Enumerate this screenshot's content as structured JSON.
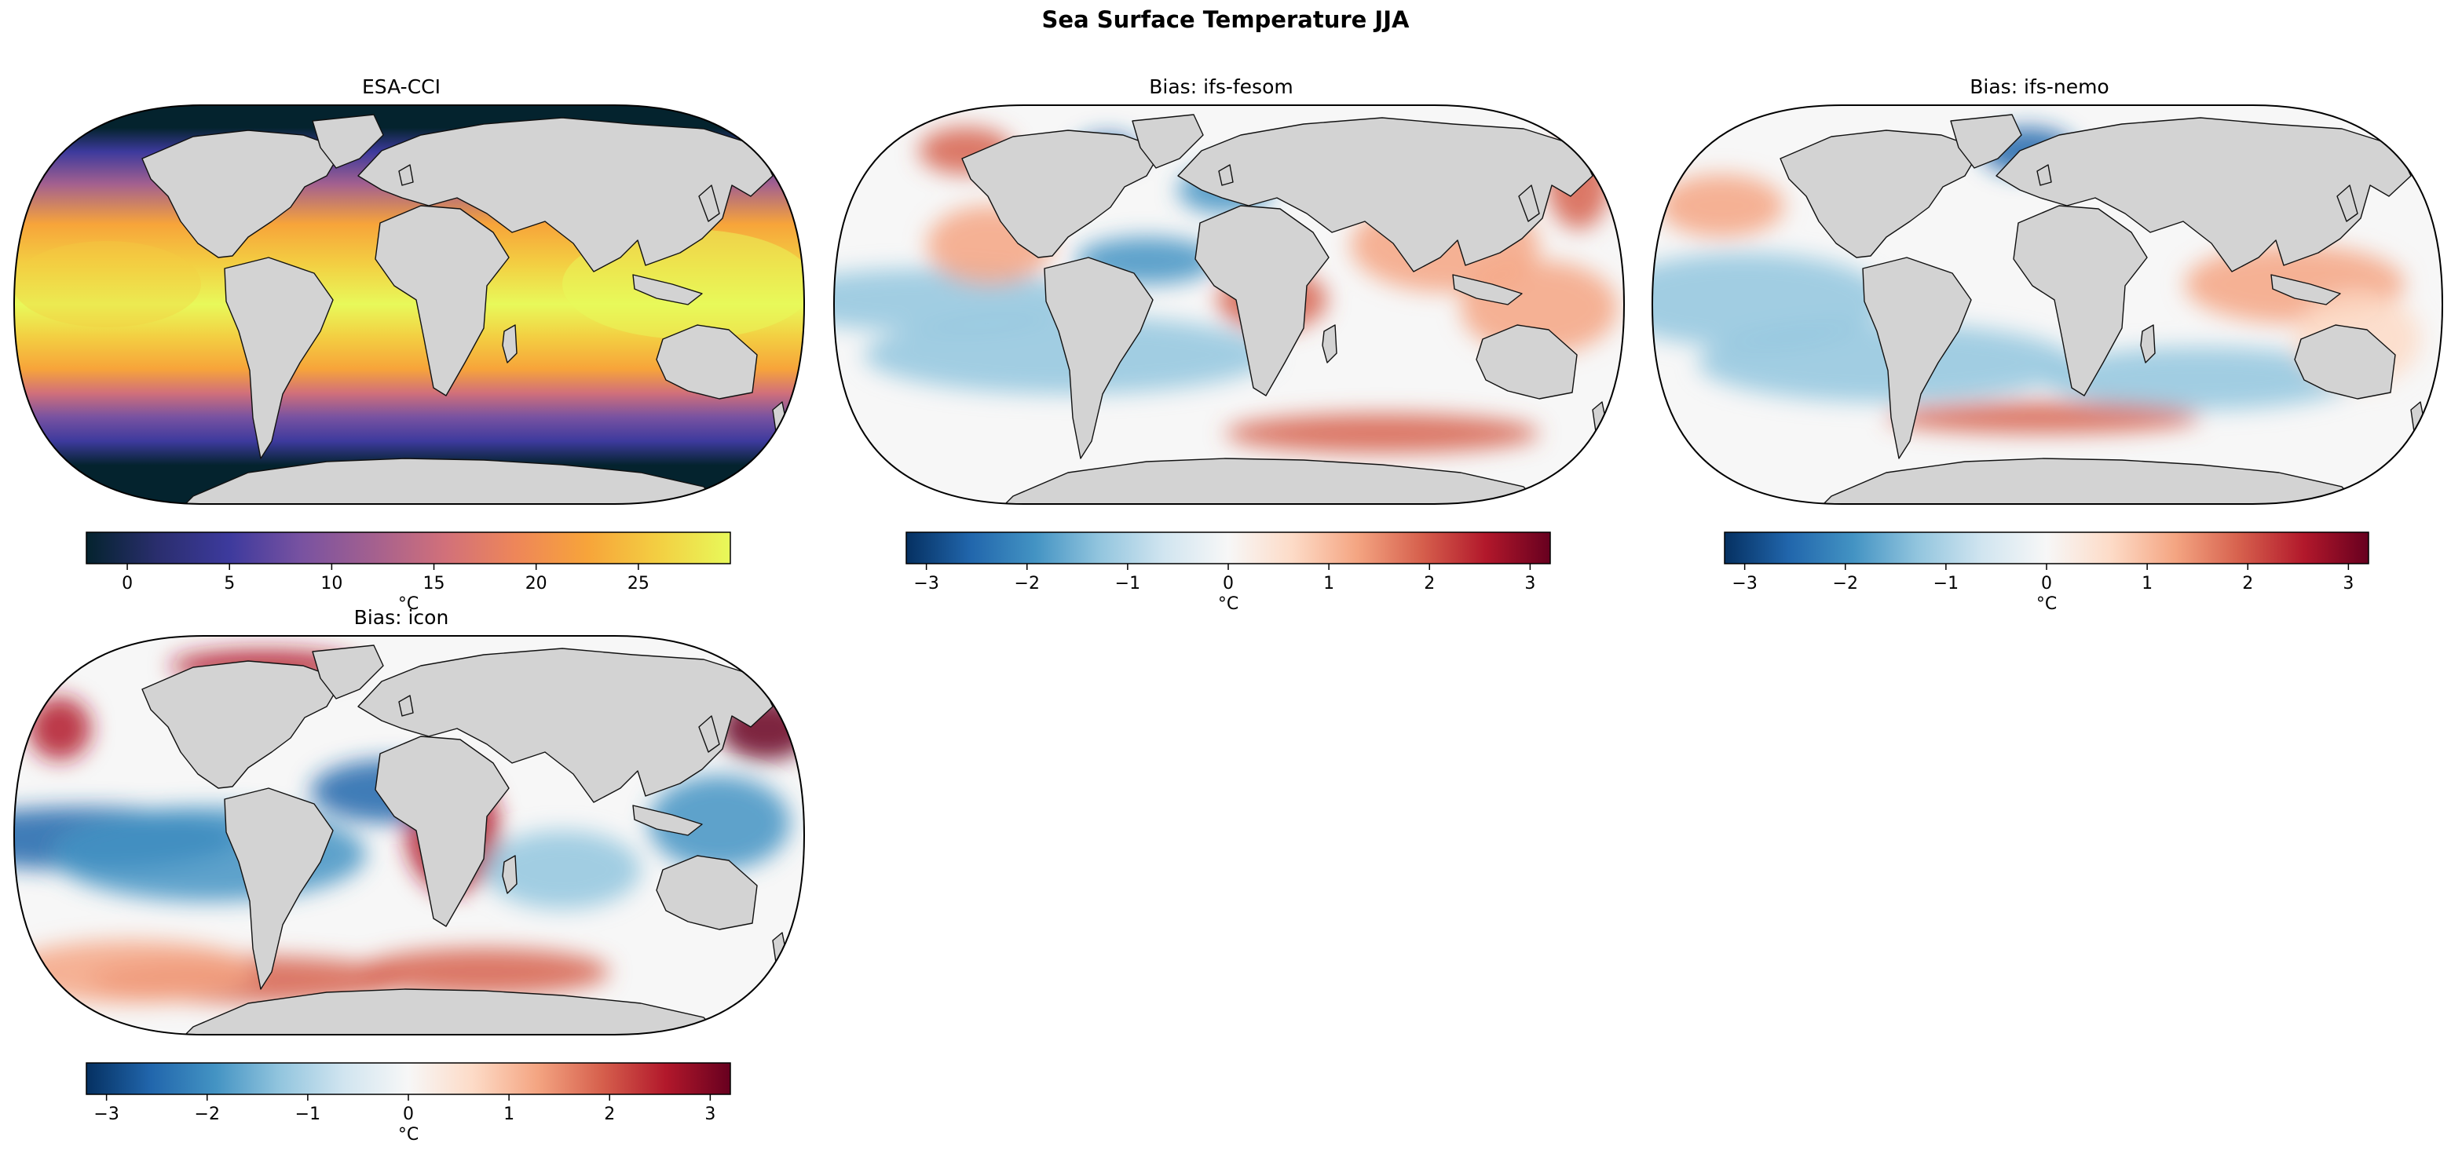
{
  "title": "Sea Surface Temperature JJA",
  "colors": {
    "land": "#d3d3d3",
    "coast": "#111111",
    "thermal": [
      "#04232e",
      "#2a2e6e",
      "#3d3a9d",
      "#7852a1",
      "#a3608f",
      "#d1707a",
      "#ee8659",
      "#f7a43a",
      "#f3cf42",
      "#e8f95a"
    ],
    "bias": [
      "#053061",
      "#2166ac",
      "#4393c3",
      "#92c5de",
      "#d1e5f0",
      "#f7f7f7",
      "#fddbc7",
      "#f4a582",
      "#d6604d",
      "#b2182b",
      "#67001f"
    ]
  },
  "panels": [
    {
      "title": "ESA-CCI",
      "kind": "thermal",
      "colorbar": {
        "min": -2,
        "max": 29.5,
        "ticks": [
          "0",
          "5",
          "10",
          "15",
          "20",
          "25"
        ],
        "tick_values": [
          0,
          5,
          10,
          15,
          20,
          25
        ],
        "unit": "°C"
      }
    },
    {
      "title": "Bias: ifs-fesom",
      "kind": "bias",
      "colorbar": {
        "min": -3.2,
        "max": 3.2,
        "ticks": [
          "−3",
          "−2",
          "−1",
          "0",
          "1",
          "2",
          "3"
        ],
        "tick_values": [
          -3,
          -2,
          -1,
          0,
          1,
          2,
          3
        ],
        "unit": "°C"
      }
    },
    {
      "title": "Bias: ifs-nemo",
      "kind": "bias",
      "colorbar": {
        "min": -3.2,
        "max": 3.2,
        "ticks": [
          "−3",
          "−2",
          "−1",
          "0",
          "1",
          "2",
          "3"
        ],
        "tick_values": [
          -3,
          -2,
          -1,
          0,
          1,
          2,
          3
        ],
        "unit": "°C"
      }
    },
    {
      "title": "Bias: icon",
      "kind": "bias",
      "colorbar": {
        "min": -3.2,
        "max": 3.2,
        "ticks": [
          "−3",
          "−2",
          "−1",
          "0",
          "1",
          "2",
          "3"
        ],
        "tick_values": [
          -3,
          -2,
          -1,
          0,
          1,
          2,
          3
        ],
        "unit": "°C"
      }
    }
  ]
}
